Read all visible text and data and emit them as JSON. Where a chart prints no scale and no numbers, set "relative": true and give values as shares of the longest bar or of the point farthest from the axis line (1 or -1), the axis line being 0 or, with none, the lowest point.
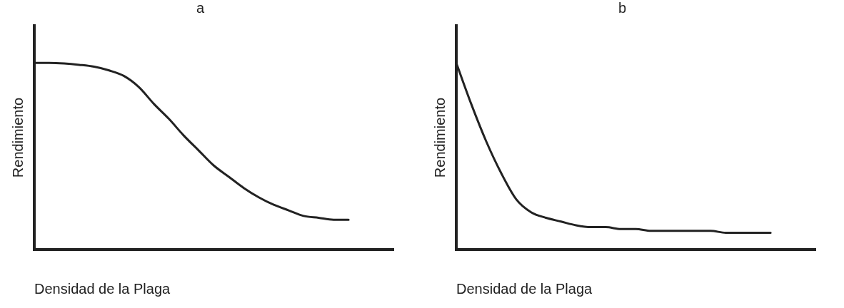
{
  "chart_data": [
    {
      "type": "line",
      "title": "a",
      "xlabel": "Densidad de la Plaga",
      "ylabel": "Rendimiento",
      "relative": true,
      "grid": false,
      "legend": false,
      "marker": "none",
      "line_style": "solid",
      "categories": [
        null,
        null,
        null,
        null,
        null,
        null,
        null,
        null,
        null,
        null,
        null,
        null,
        null,
        null,
        null,
        null,
        null,
        null,
        null,
        null,
        null,
        null,
        null,
        null,
        null
      ],
      "series": [
        {
          "color": "#222222",
          "values": [
            1,
            1,
            0.997,
            0.99,
            0.98,
            0.96,
            0.93,
            0.87,
            0.78,
            0.7,
            0.61,
            0.53,
            0.45,
            0.39,
            0.33,
            0.28,
            0.24,
            0.21,
            0.18,
            0.17,
            0.16,
            0.16,
            null,
            null,
            null
          ]
        }
      ]
    },
    {
      "type": "line",
      "title": "b",
      "xlabel": "Densidad de la Plaga",
      "ylabel": "Rendimiento",
      "relative": true,
      "grid": false,
      "legend": false,
      "marker": "none",
      "line_style": "solid",
      "categories": [
        null,
        null,
        null,
        null,
        null,
        null,
        null,
        null,
        null,
        null,
        null,
        null,
        null,
        null,
        null,
        null,
        null,
        null,
        null,
        null,
        null,
        null,
        null,
        null,
        null
      ],
      "series": [
        {
          "color": "#222222",
          "values": [
            1,
            0.78,
            0.58,
            0.41,
            0.27,
            0.2,
            0.17,
            0.15,
            0.13,
            0.12,
            0.12,
            0.11,
            0.11,
            0.1,
            0.1,
            0.1,
            0.1,
            0.1,
            0.09,
            0.09,
            0.09,
            0.09,
            null,
            null,
            null
          ]
        }
      ]
    }
  ]
}
